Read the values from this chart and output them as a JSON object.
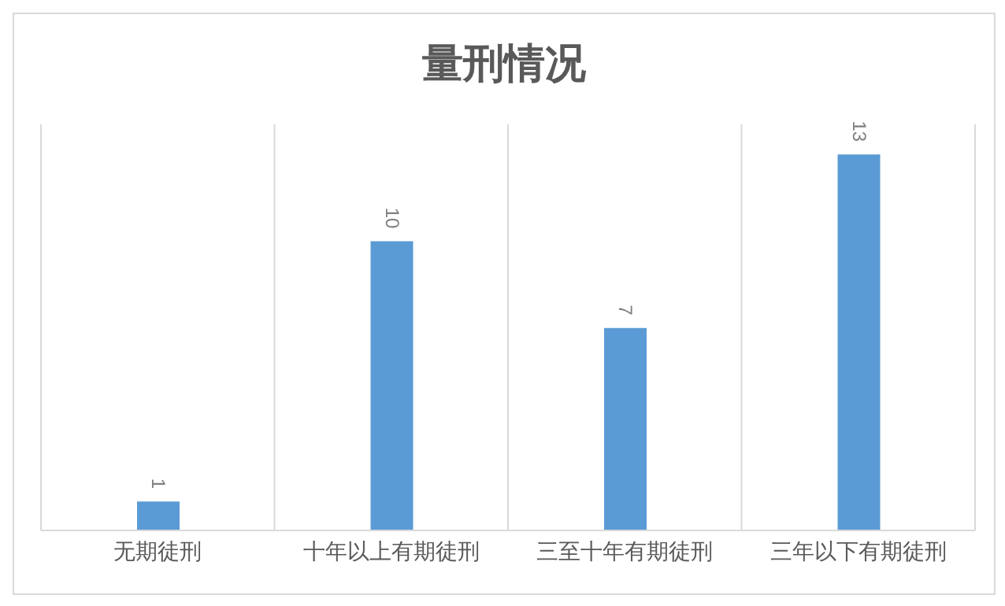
{
  "chart_data": {
    "type": "bar",
    "title": "量刑情况",
    "categories": [
      "无期徒刑",
      "十年以上有期徒刑",
      "三至十年有期徒刑",
      "三年以下有期徒刑"
    ],
    "values": [
      1,
      10,
      7,
      13
    ],
    "color": "#5b9bd5",
    "data_labels": true,
    "grid": "x"
  }
}
